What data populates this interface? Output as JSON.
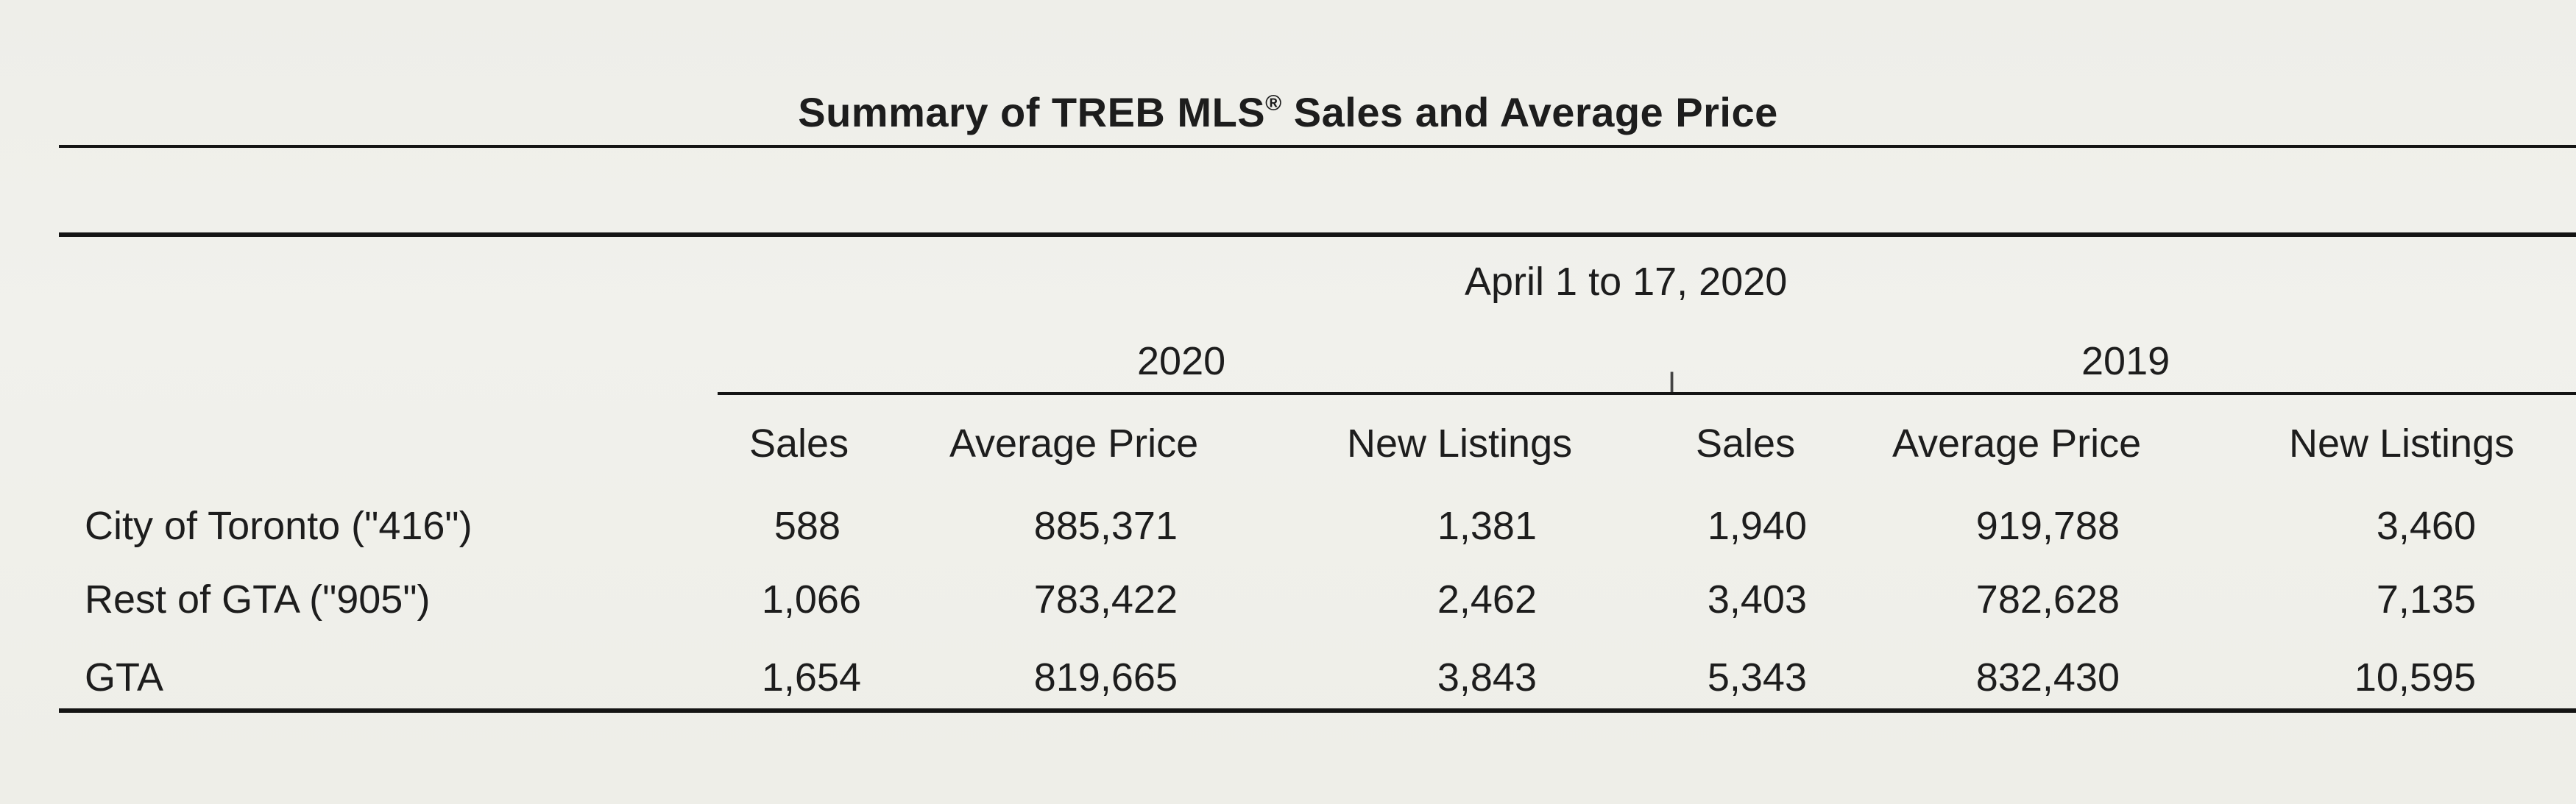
{
  "title": "Summary of TREB MLS",
  "title_mark": "®",
  "title_rest": " Sales and Average Price",
  "period": "April 1 to 17, 2020",
  "years": [
    "2020",
    "2019"
  ],
  "columns": [
    "Sales",
    "Average Price",
    "New Listings",
    "Sales",
    "Average Price",
    "New Listings"
  ],
  "rows": [
    {
      "label": "City of Toronto (\"416\")",
      "values": [
        "588",
        "885,371",
        "1,381",
        "1,940",
        "919,788",
        "3,460"
      ]
    },
    {
      "label": "Rest of GTA (\"905\")",
      "values": [
        "1,066",
        "783,422",
        "2,462",
        "3,403",
        "782,628",
        "7,135"
      ]
    },
    {
      "label": "GTA",
      "values": [
        "1,654",
        "819,665",
        "3,843",
        "5,343",
        "832,430",
        "10,595"
      ]
    }
  ]
}
